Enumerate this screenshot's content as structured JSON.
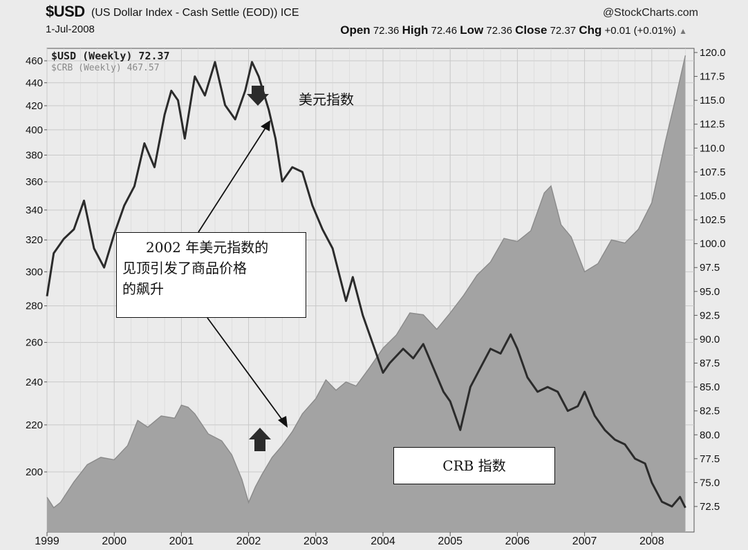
{
  "header": {
    "symbol": "$USD",
    "description": "(US Dollar Index - Cash Settle (EOD)) ICE",
    "brand": "@StockCharts.com",
    "date": "1-Jul-2008",
    "ohlc": {
      "open_label": "Open",
      "open": "72.36",
      "high_label": "High",
      "high": "72.46",
      "low_label": "Low",
      "low": "72.36",
      "close_label": "Close",
      "close": "72.37",
      "chg_label": "Chg",
      "chg": "+0.01 (+0.01%)",
      "trend_glyph": "▲"
    }
  },
  "legend": {
    "usd": "$USD (Weekly) 72.37",
    "crb": "$CRB (Weekly) 467.57"
  },
  "annotations": {
    "main_lines": [
      "2002 年美元指数的",
      "见顶引发了商品价格",
      "的飙升"
    ],
    "usd_label": "美元指数",
    "crb_label": "CRB 指数"
  },
  "colors": {
    "background": "#ebebeb",
    "grid": "#c8c8c8",
    "usd_line": "#2b2b2b",
    "crb_fill": "#a3a3a3",
    "crb_edge": "#8a8a8a",
    "arrow": "#2b2b2b"
  },
  "chart_data": {
    "type": "area",
    "x_ticks": [
      "1999",
      "2000",
      "2001",
      "2002",
      "2003",
      "2004",
      "2005",
      "2006",
      "2007",
      "2008"
    ],
    "left_axis": {
      "ticks": [
        200,
        220,
        240,
        260,
        280,
        300,
        320,
        340,
        360,
        380,
        400,
        420,
        440,
        460
      ],
      "scale": "log"
    },
    "right_axis": {
      "ticks": [
        "72.5",
        "75.0",
        "77.5",
        "80.0",
        "82.5",
        "85.0",
        "87.5",
        "90.0",
        "92.5",
        "95.0",
        "97.5",
        "100.0",
        "102.5",
        "105.0",
        "107.5",
        "110.0",
        "112.5",
        "115.0",
        "117.5",
        "120.0"
      ]
    },
    "grid": true,
    "legend_position": "top-left",
    "series": [
      {
        "name": "$CRB (Weekly)",
        "axis": "left",
        "style": "area",
        "x": [
          1999.0,
          1999.1,
          1999.2,
          1999.4,
          1999.6,
          1999.8,
          2000.0,
          2000.2,
          2000.35,
          2000.5,
          2000.7,
          2000.9,
          2001.0,
          2001.1,
          2001.2,
          2001.4,
          2001.6,
          2001.75,
          2001.9,
          2002.0,
          2002.1,
          2002.2,
          2002.35,
          2002.5,
          2002.65,
          2002.8,
          2003.0,
          2003.15,
          2003.3,
          2003.45,
          2003.6,
          2003.8,
          2004.0,
          2004.2,
          2004.4,
          2004.6,
          2004.8,
          2005.0,
          2005.2,
          2005.4,
          2005.6,
          2005.8,
          2006.0,
          2006.2,
          2006.4,
          2006.5,
          2006.65,
          2006.8,
          2007.0,
          2007.2,
          2007.4,
          2007.6,
          2007.8,
          2008.0,
          2008.2,
          2008.35,
          2008.5
        ],
        "values": [
          190,
          186,
          188,
          196,
          203,
          206,
          205,
          211,
          222,
          219,
          224,
          223,
          229,
          228,
          225,
          216,
          213,
          207,
          197,
          188,
          194,
          199,
          206,
          211,
          217,
          225,
          232,
          241,
          236,
          240,
          238,
          247,
          257,
          264,
          276,
          275,
          267,
          276,
          286,
          298,
          306,
          321,
          319,
          326,
          352,
          357,
          330,
          322,
          300,
          305,
          320,
          318,
          327,
          345,
          390,
          425,
          465
        ]
      },
      {
        "name": "$USD (Weekly)",
        "axis": "right",
        "style": "line",
        "x": [
          1999.0,
          1999.1,
          1999.25,
          1999.4,
          1999.55,
          1999.7,
          1999.85,
          2000.0,
          2000.15,
          2000.3,
          2000.45,
          2000.6,
          2000.75,
          2000.85,
          2000.95,
          2001.05,
          2001.2,
          2001.35,
          2001.5,
          2001.65,
          2001.8,
          2001.95,
          2002.05,
          2002.15,
          2002.3,
          2002.4,
          2002.5,
          2002.65,
          2002.8,
          2002.95,
          2003.1,
          2003.25,
          2003.45,
          2003.55,
          2003.7,
          2003.85,
          2004.0,
          2004.1,
          2004.3,
          2004.45,
          2004.6,
          2004.75,
          2004.9,
          2005.0,
          2005.15,
          2005.3,
          2005.45,
          2005.6,
          2005.75,
          2005.9,
          2006.0,
          2006.15,
          2006.3,
          2006.45,
          2006.6,
          2006.75,
          2006.9,
          2007.0,
          2007.15,
          2007.3,
          2007.45,
          2007.6,
          2007.75,
          2007.9,
          2008.0,
          2008.15,
          2008.3,
          2008.42,
          2008.5
        ],
        "values": [
          94.5,
          99.0,
          100.5,
          101.5,
          104.5,
          99.5,
          97.5,
          101.0,
          104.0,
          106.0,
          110.5,
          108.0,
          113.5,
          116.0,
          115.0,
          111.0,
          117.5,
          115.5,
          119.0,
          114.5,
          113.0,
          116.0,
          119.0,
          117.5,
          114.0,
          111.0,
          106.5,
          108.0,
          107.5,
          104.0,
          101.5,
          99.5,
          94.0,
          96.5,
          92.5,
          89.5,
          86.5,
          87.5,
          89.0,
          88.0,
          89.5,
          87.0,
          84.5,
          83.5,
          80.5,
          85.0,
          87.0,
          89.0,
          88.5,
          90.5,
          89.0,
          86.0,
          84.5,
          85.0,
          84.5,
          82.5,
          83.0,
          84.5,
          82.0,
          80.5,
          79.5,
          79.0,
          77.5,
          77.0,
          75.0,
          73.0,
          72.5,
          73.5,
          72.37
        ]
      }
    ]
  }
}
